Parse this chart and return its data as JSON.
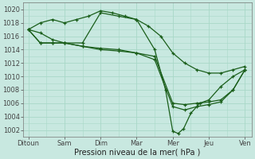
{
  "title": "Pression niveau de la mer( hPa )",
  "bg_color": "#c8e8e0",
  "grid_color": "#a8d8c8",
  "line_color": "#1a5e1a",
  "ylim": [
    1001,
    1021
  ],
  "yticks": [
    1002,
    1004,
    1006,
    1008,
    1010,
    1012,
    1014,
    1016,
    1018,
    1020
  ],
  "x_labels": [
    "Ditoun",
    "Sam",
    "Dim",
    "Mar",
    "Mer",
    "Jeu",
    "Ven"
  ],
  "series_data": [
    {
      "x": [
        0,
        0.33,
        0.67,
        1.0,
        1.33,
        1.67,
        2.0,
        2.33,
        2.67,
        3.0,
        3.33,
        3.67,
        4.0,
        4.33,
        4.67,
        5.0,
        5.33,
        5.67,
        6.0
      ],
      "y": [
        1017,
        1018,
        1018.5,
        1018,
        1018.5,
        1019,
        1019.8,
        1019.5,
        1019,
        1018.5,
        1017.5,
        1016,
        1013.5,
        1012,
        1011,
        1010.5,
        1010.5,
        1011,
        1011.5
      ]
    },
    {
      "x": [
        0,
        0.33,
        0.67,
        1.0,
        1.5,
        2.0,
        2.5,
        3.0,
        3.5,
        3.8,
        4.0,
        4.15,
        4.3,
        4.5,
        4.75,
        5.0,
        5.33,
        5.67,
        6.0
      ],
      "y": [
        1017,
        1016.5,
        1015.5,
        1015,
        1015,
        1019.5,
        1019,
        1018.5,
        1014,
        1008,
        1001.8,
        1001.5,
        1002.2,
        1004.5,
        1006,
        1006.5,
        1008.5,
        1010,
        1011
      ]
    },
    {
      "x": [
        0,
        0.33,
        0.67,
        1.0,
        1.5,
        2.0,
        2.5,
        3.0,
        3.5,
        4.0,
        4.33,
        4.67,
        5.0,
        5.33,
        5.67,
        6.0
      ],
      "y": [
        1017,
        1015,
        1015,
        1015,
        1014.5,
        1014.2,
        1014,
        1013.5,
        1013,
        1006,
        1005.8,
        1006,
        1006.2,
        1006.5,
        1008,
        1011
      ]
    },
    {
      "x": [
        0,
        0.33,
        0.67,
        1.0,
        1.5,
        2.0,
        2.5,
        3.0,
        3.5,
        4.0,
        4.33,
        4.67,
        5.0,
        5.33,
        5.67,
        6.0
      ],
      "y": [
        1017,
        1015,
        1015,
        1015,
        1014.5,
        1014,
        1013.8,
        1013.5,
        1012.5,
        1005.5,
        1005.0,
        1005.5,
        1005.8,
        1006.2,
        1008,
        1011
      ]
    }
  ]
}
